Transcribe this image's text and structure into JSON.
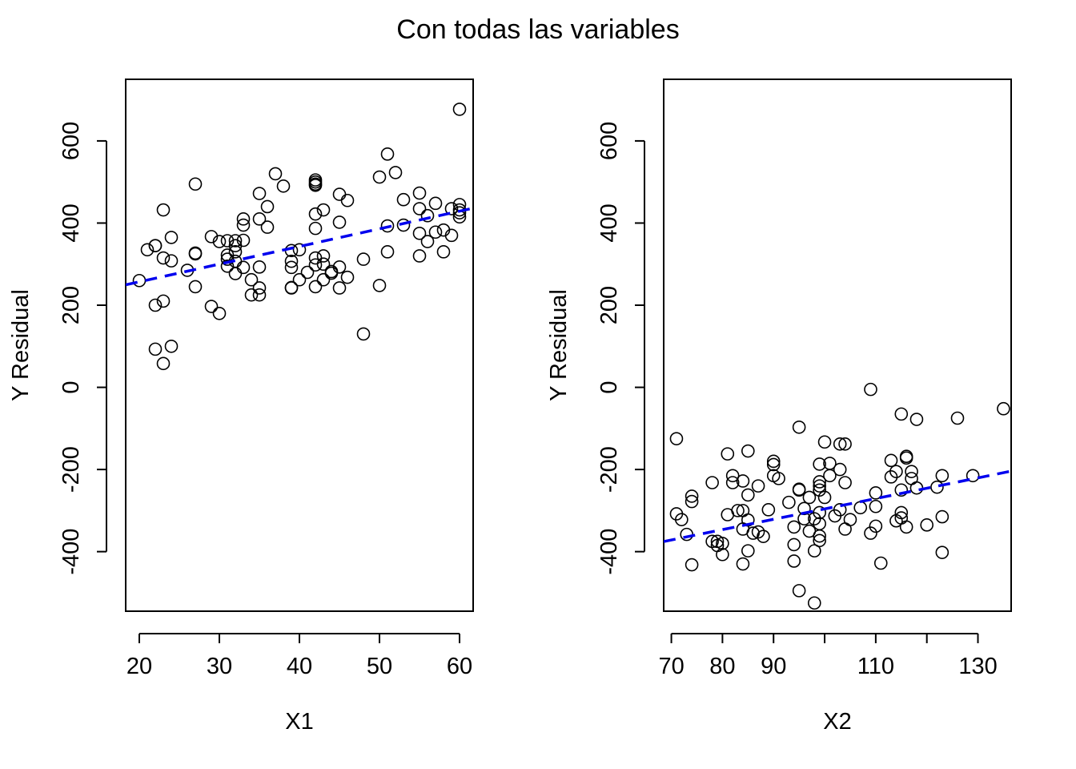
{
  "title": "Con todas las variables",
  "colors": {
    "fit_line": "#0000ee",
    "points": "#000000",
    "axes": "#000000"
  },
  "chart_data": [
    {
      "type": "scatter",
      "title": "",
      "xlabel": "X1",
      "ylabel": "Y Residual",
      "xlim": [
        18.3,
        61.7
      ],
      "ylim": [
        -545,
        750
      ],
      "xticks": [
        20,
        30,
        40,
        50,
        60
      ],
      "xtick_labels": [
        "20",
        "30",
        "40",
        "50",
        "60"
      ],
      "yticks": [
        -400,
        -200,
        0,
        200,
        400,
        600
      ],
      "ytick_labels": [
        "-400",
        "-200",
        "0",
        "200",
        "400",
        "600"
      ],
      "fit_line": {
        "style": "dashed",
        "color": "#0000ee",
        "intercept": 171,
        "slope": 4.3
      },
      "points": [
        [
          20,
          260
        ],
        [
          21,
          335
        ],
        [
          22,
          345
        ],
        [
          22,
          345
        ],
        [
          22,
          200
        ],
        [
          22,
          93
        ],
        [
          23,
          432
        ],
        [
          23,
          315
        ],
        [
          23,
          210
        ],
        [
          23,
          58
        ],
        [
          24,
          365
        ],
        [
          24,
          308
        ],
        [
          24,
          100
        ],
        [
          26,
          285
        ],
        [
          27,
          495
        ],
        [
          27,
          327
        ],
        [
          27,
          325
        ],
        [
          27,
          245
        ],
        [
          29,
          367
        ],
        [
          29,
          197
        ],
        [
          30,
          355
        ],
        [
          30,
          180
        ],
        [
          31,
          357
        ],
        [
          31,
          322
        ],
        [
          31,
          312
        ],
        [
          31,
          295
        ],
        [
          32,
          357
        ],
        [
          32,
          345
        ],
        [
          32,
          330
        ],
        [
          32,
          307
        ],
        [
          32,
          277
        ],
        [
          33,
          410
        ],
        [
          33,
          395
        ],
        [
          33,
          358
        ],
        [
          33,
          292
        ],
        [
          34,
          262
        ],
        [
          34,
          225
        ],
        [
          35,
          472
        ],
        [
          35,
          410
        ],
        [
          35,
          293
        ],
        [
          35,
          242
        ],
        [
          35,
          225
        ],
        [
          36,
          440
        ],
        [
          36,
          390
        ],
        [
          37,
          520
        ],
        [
          38,
          490
        ],
        [
          39,
          333
        ],
        [
          39,
          307
        ],
        [
          39,
          292
        ],
        [
          39,
          243
        ],
        [
          39,
          242
        ],
        [
          40,
          335
        ],
        [
          40,
          262
        ],
        [
          41,
          280
        ],
        [
          42,
          505
        ],
        [
          42,
          500
        ],
        [
          42,
          495
        ],
        [
          42,
          492
        ],
        [
          42,
          422
        ],
        [
          42,
          387
        ],
        [
          42,
          315
        ],
        [
          42,
          298
        ],
        [
          42,
          245
        ],
        [
          43,
          432
        ],
        [
          43,
          320
        ],
        [
          43,
          300
        ],
        [
          43,
          262
        ],
        [
          44,
          282
        ],
        [
          44,
          278
        ],
        [
          45,
          470
        ],
        [
          45,
          402
        ],
        [
          45,
          293
        ],
        [
          45,
          242
        ],
        [
          46,
          455
        ],
        [
          46,
          268
        ],
        [
          48,
          312
        ],
        [
          48,
          130
        ],
        [
          50,
          512
        ],
        [
          50,
          248
        ],
        [
          51,
          568
        ],
        [
          51,
          393
        ],
        [
          51,
          330
        ],
        [
          52,
          523
        ],
        [
          53,
          457
        ],
        [
          53,
          395
        ],
        [
          55,
          473
        ],
        [
          55,
          435
        ],
        [
          55,
          375
        ],
        [
          55,
          320
        ],
        [
          56,
          418
        ],
        [
          56,
          355
        ],
        [
          57,
          448
        ],
        [
          57,
          378
        ],
        [
          58,
          383
        ],
        [
          58,
          330
        ],
        [
          59,
          435
        ],
        [
          59,
          370
        ],
        [
          60,
          677
        ],
        [
          60,
          445
        ],
        [
          60,
          432
        ],
        [
          60,
          425
        ],
        [
          60,
          415
        ]
      ]
    },
    {
      "type": "scatter",
      "title": "",
      "xlabel": "X2",
      "ylabel": "Y Residual",
      "xlim": [
        68.5,
        136.5
      ],
      "ylim": [
        -545,
        750
      ],
      "xticks": [
        70,
        80,
        90,
        100,
        110,
        120,
        130
      ],
      "xtick_labels": [
        "70",
        "80",
        "90",
        "",
        "110",
        "",
        "130"
      ],
      "yticks": [
        -400,
        -200,
        0,
        200,
        400,
        600
      ],
      "ytick_labels": [
        "-400",
        "-200",
        "0",
        "200",
        "400",
        "600"
      ],
      "fit_line": {
        "style": "dashed",
        "color": "#0000ee",
        "intercept": -548,
        "slope": 2.52
      },
      "points": [
        [
          71,
          -125
        ],
        [
          71,
          -308
        ],
        [
          72,
          -322
        ],
        [
          73,
          -358
        ],
        [
          74,
          -432
        ],
        [
          74,
          -278
        ],
        [
          74,
          -265
        ],
        [
          78,
          -232
        ],
        [
          78,
          -375
        ],
        [
          79,
          -385
        ],
        [
          79,
          -375
        ],
        [
          80,
          -407
        ],
        [
          80,
          -380
        ],
        [
          81,
          -310
        ],
        [
          81,
          -162
        ],
        [
          82,
          -232
        ],
        [
          82,
          -215
        ],
        [
          83,
          -300
        ],
        [
          84,
          -228
        ],
        [
          84,
          -300
        ],
        [
          84,
          -345
        ],
        [
          84,
          -430
        ],
        [
          85,
          -155
        ],
        [
          85,
          -262
        ],
        [
          85,
          -323
        ],
        [
          85,
          -398
        ],
        [
          86,
          -355
        ],
        [
          87,
          -240
        ],
        [
          87,
          -352
        ],
        [
          88,
          -363
        ],
        [
          89,
          -298
        ],
        [
          90,
          -180
        ],
        [
          90,
          -188
        ],
        [
          90,
          -215
        ],
        [
          91,
          -222
        ],
        [
          93,
          -280
        ],
        [
          94,
          -340
        ],
        [
          94,
          -383
        ],
        [
          94,
          -423
        ],
        [
          95,
          -97
        ],
        [
          95,
          -248
        ],
        [
          95,
          -250
        ],
        [
          95,
          -495
        ],
        [
          96,
          -295
        ],
        [
          96,
          -320
        ],
        [
          97,
          -268
        ],
        [
          97,
          -350
        ],
        [
          98,
          -320
        ],
        [
          98,
          -398
        ],
        [
          98,
          -525
        ],
        [
          99,
          -187
        ],
        [
          99,
          -230
        ],
        [
          99,
          -240
        ],
        [
          99,
          -250
        ],
        [
          99,
          -305
        ],
        [
          99,
          -332
        ],
        [
          99,
          -362
        ],
        [
          99,
          -373
        ],
        [
          100,
          -133
        ],
        [
          100,
          -268
        ],
        [
          101,
          -185
        ],
        [
          101,
          -215
        ],
        [
          102,
          -313
        ],
        [
          103,
          -138
        ],
        [
          103,
          -200
        ],
        [
          103,
          -298
        ],
        [
          104,
          -138
        ],
        [
          104,
          -232
        ],
        [
          104,
          -345
        ],
        [
          105,
          -322
        ],
        [
          107,
          -293
        ],
        [
          109,
          -5
        ],
        [
          109,
          -355
        ],
        [
          110,
          -257
        ],
        [
          110,
          -290
        ],
        [
          110,
          -338
        ],
        [
          111,
          -428
        ],
        [
          113,
          -178
        ],
        [
          113,
          -218
        ],
        [
          114,
          -205
        ],
        [
          114,
          -325
        ],
        [
          115,
          -65
        ],
        [
          115,
          -250
        ],
        [
          115,
          -305
        ],
        [
          115,
          -318
        ],
        [
          116,
          -168
        ],
        [
          116,
          -172
        ],
        [
          116,
          -340
        ],
        [
          117,
          -205
        ],
        [
          117,
          -222
        ],
        [
          118,
          -78
        ],
        [
          118,
          -245
        ],
        [
          120,
          -335
        ],
        [
          122,
          -243
        ],
        [
          123,
          -215
        ],
        [
          123,
          -315
        ],
        [
          123,
          -402
        ],
        [
          126,
          -75
        ],
        [
          129,
          -215
        ],
        [
          135,
          -52
        ]
      ]
    }
  ]
}
